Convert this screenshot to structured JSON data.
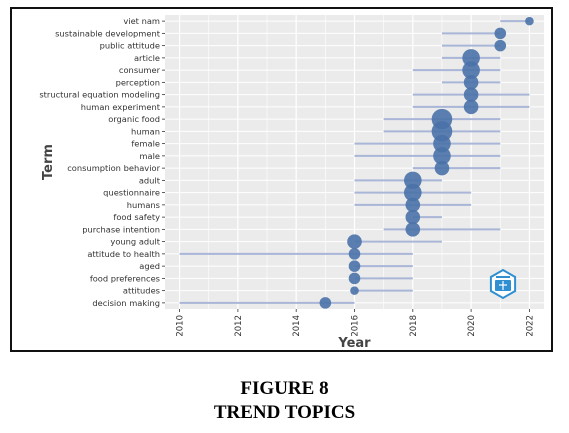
{
  "figure": {
    "number": "FIGURE 8",
    "title": "TREND TOPICS"
  },
  "chart_data": {
    "type": "scatter",
    "title": "",
    "xlabel": "Year",
    "ylabel": "Term",
    "xlim": [
      2009.5,
      2022.5
    ],
    "xticks": [
      2010,
      2012,
      2014,
      2016,
      2018,
      2020,
      2022
    ],
    "grid": true,
    "legend": "none",
    "colors": {
      "point": "#4a72a8",
      "line": "#a9b6d8",
      "panel": "#ebebeb",
      "grid": "#ffffff",
      "axis_text": "#333333"
    },
    "terms": [
      {
        "term": "viet nam",
        "median": 2022,
        "q1": 2021,
        "q3": 2022,
        "freq": 1
      },
      {
        "term": "sustainable development",
        "median": 2021,
        "q1": 2019,
        "q3": 2021,
        "freq": 2
      },
      {
        "term": "public attitude",
        "median": 2021,
        "q1": 2019,
        "q3": 2021,
        "freq": 2
      },
      {
        "term": "article",
        "median": 2020,
        "q1": 2019,
        "q3": 2021,
        "freq": 4
      },
      {
        "term": "consumer",
        "median": 2020,
        "q1": 2018,
        "q3": 2021,
        "freq": 4
      },
      {
        "term": "perception",
        "median": 2020,
        "q1": 2019,
        "q3": 2021,
        "freq": 3
      },
      {
        "term": "structural equation modeling",
        "median": 2020,
        "q1": 2018,
        "q3": 2022,
        "freq": 3
      },
      {
        "term": "human experiment",
        "median": 2020,
        "q1": 2018,
        "q3": 2022,
        "freq": 3
      },
      {
        "term": "organic food",
        "median": 2019,
        "q1": 2017,
        "q3": 2021,
        "freq": 5
      },
      {
        "term": "human",
        "median": 2019,
        "q1": 2017,
        "q3": 2021,
        "freq": 5
      },
      {
        "term": "female",
        "median": 2019,
        "q1": 2016,
        "q3": 2021,
        "freq": 4
      },
      {
        "term": "male",
        "median": 2019,
        "q1": 2016,
        "q3": 2021,
        "freq": 4
      },
      {
        "term": "consumption behavior",
        "median": 2019,
        "q1": 2018,
        "q3": 2021,
        "freq": 3
      },
      {
        "term": "adult",
        "median": 2018,
        "q1": 2016,
        "q3": 2019,
        "freq": 4
      },
      {
        "term": "questionnaire",
        "median": 2018,
        "q1": 2016,
        "q3": 2020,
        "freq": 4
      },
      {
        "term": "humans",
        "median": 2018,
        "q1": 2016,
        "q3": 2020,
        "freq": 3
      },
      {
        "term": "food safety",
        "median": 2018,
        "q1": 2018,
        "q3": 2019,
        "freq": 3
      },
      {
        "term": "purchase intention",
        "median": 2018,
        "q1": 2017,
        "q3": 2021,
        "freq": 3
      },
      {
        "term": "young adult",
        "median": 2016,
        "q1": 2016,
        "q3": 2019,
        "freq": 3
      },
      {
        "term": "attitude to health",
        "median": 2016,
        "q1": 2010,
        "q3": 2018,
        "freq": 2
      },
      {
        "term": "aged",
        "median": 2016,
        "q1": 2016,
        "q3": 2018,
        "freq": 2
      },
      {
        "term": "food preferences",
        "median": 2016,
        "q1": 2016,
        "q3": 2018,
        "freq": 2
      },
      {
        "term": "attitudes",
        "median": 2016,
        "q1": 2016,
        "q3": 2018,
        "freq": 1
      },
      {
        "term": "decision making",
        "median": 2015,
        "q1": 2010,
        "q3": 2016,
        "freq": 2
      }
    ]
  }
}
